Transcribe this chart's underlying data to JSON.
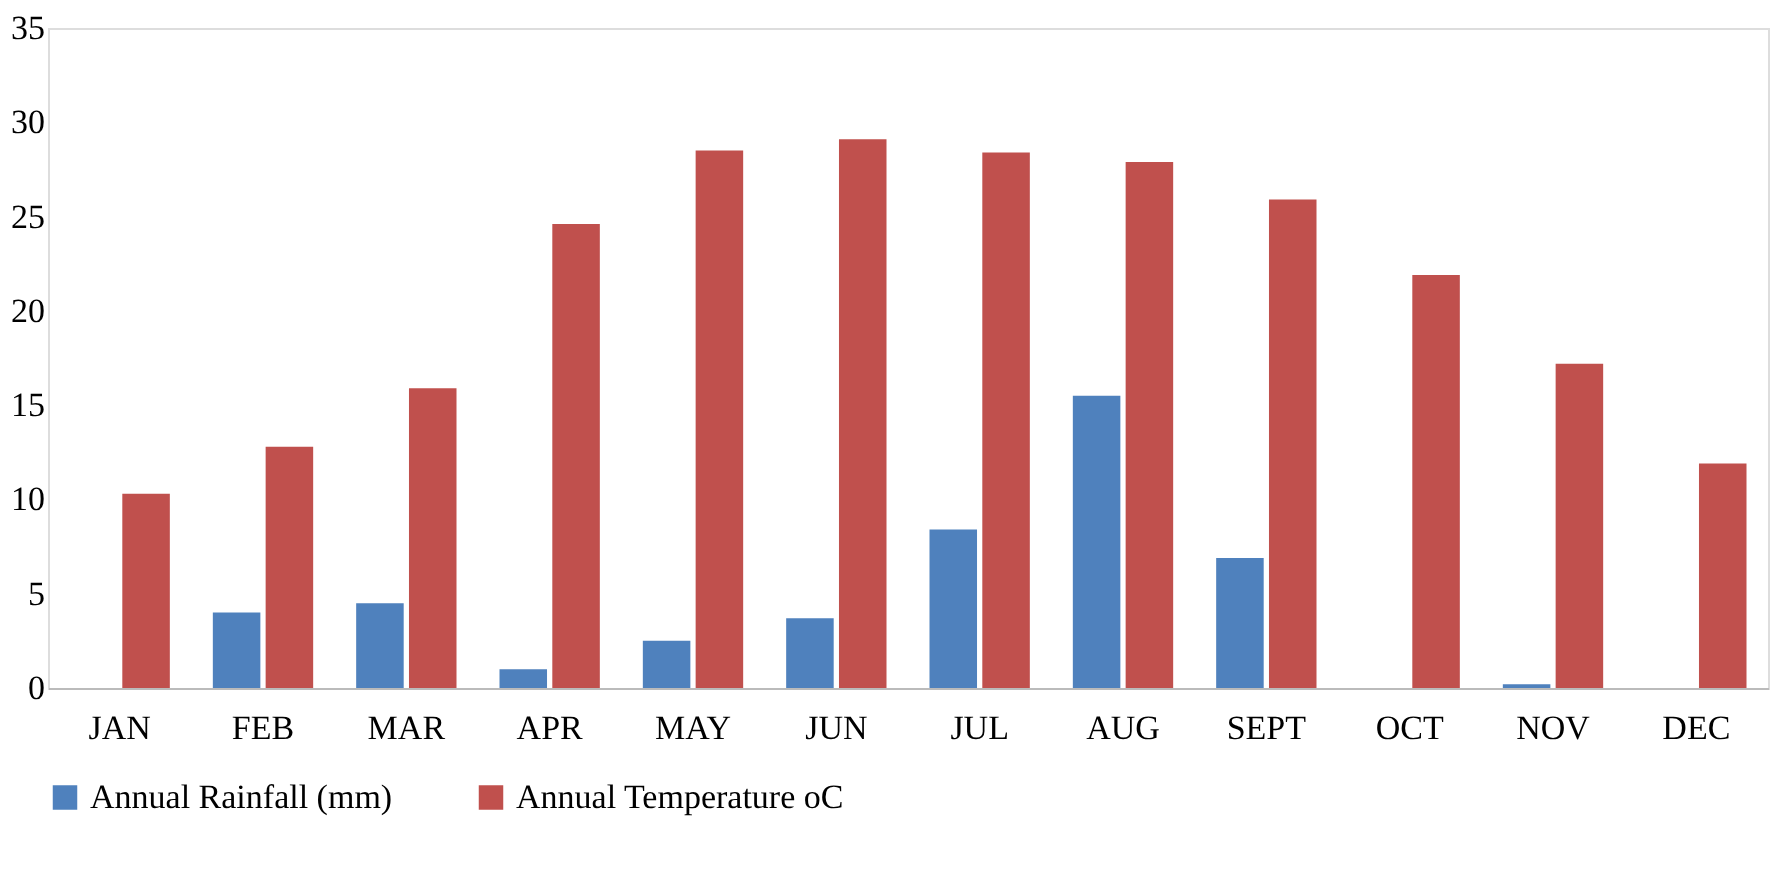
{
  "chart_data": {
    "type": "bar",
    "categories": [
      "JAN",
      "FEB",
      "MAR",
      "APR",
      "MAY",
      "JUN",
      "JUL",
      "AUG",
      "SEPT",
      "OCT",
      "NOV",
      "DEC"
    ],
    "series": [
      {
        "name": "Annual Rainfall (mm)",
        "color": "#4f81bd",
        "values": [
          0,
          4.0,
          4.5,
          1.0,
          2.5,
          3.7,
          8.4,
          15.5,
          6.9,
          0,
          0.2,
          0
        ]
      },
      {
        "name": "Annual Temperature oC",
        "color": "#c0504d",
        "values": [
          10.3,
          12.8,
          15.9,
          24.6,
          28.5,
          29.1,
          28.4,
          27.9,
          25.9,
          21.9,
          17.2,
          11.9
        ]
      }
    ],
    "ylim": [
      0,
      35
    ],
    "yticks": [
      0,
      5,
      10,
      15,
      20,
      25,
      30,
      35
    ],
    "grid": false,
    "legend": "bottom"
  }
}
